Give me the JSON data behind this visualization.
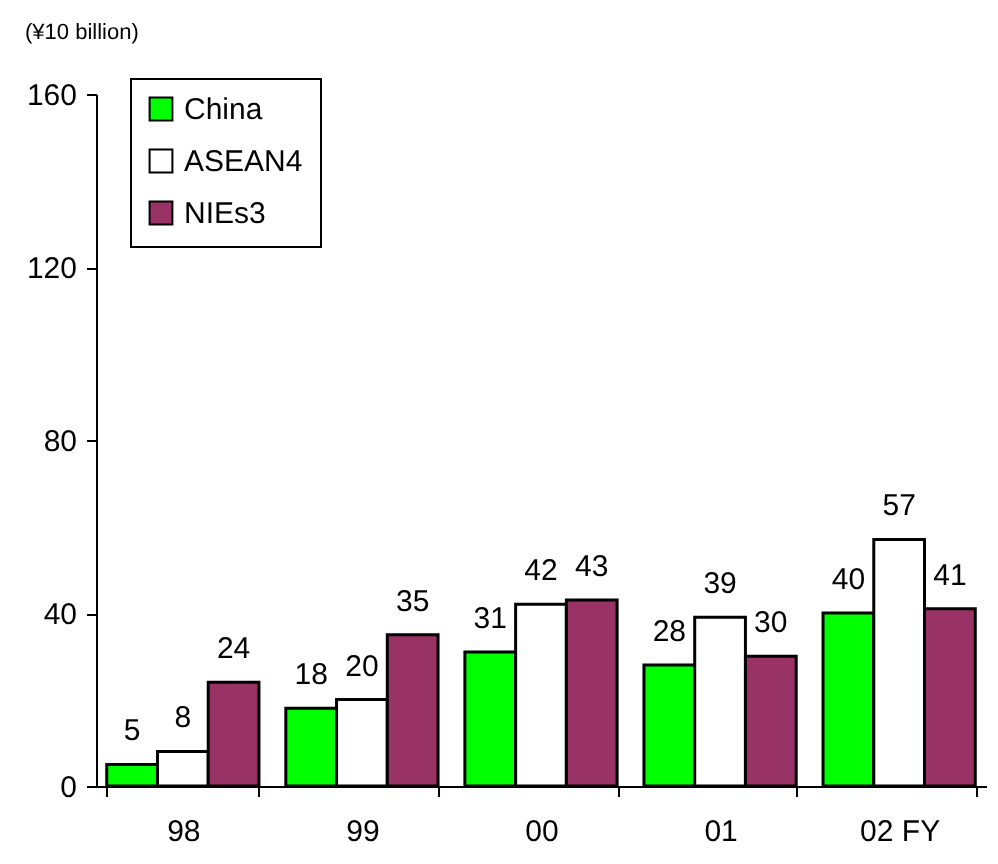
{
  "chart_data": {
    "type": "bar",
    "ylabel": "(¥10 billion)",
    "categories": [
      "98",
      "99",
      "00",
      "01",
      "02 FY"
    ],
    "series": [
      {
        "name": "China",
        "color": "#00ff00",
        "values": [
          5,
          18,
          31,
          28,
          40
        ]
      },
      {
        "name": "ASEAN4",
        "color": "#ffffff",
        "values": [
          8,
          20,
          42,
          39,
          57
        ]
      },
      {
        "name": "NIEs3",
        "color": "#993366",
        "values": [
          24,
          35,
          43,
          30,
          41
        ]
      }
    ],
    "ylim": [
      0,
      160
    ],
    "yticks": [
      0,
      40,
      80,
      120,
      160
    ],
    "data_labels": true,
    "legend": "top left"
  }
}
